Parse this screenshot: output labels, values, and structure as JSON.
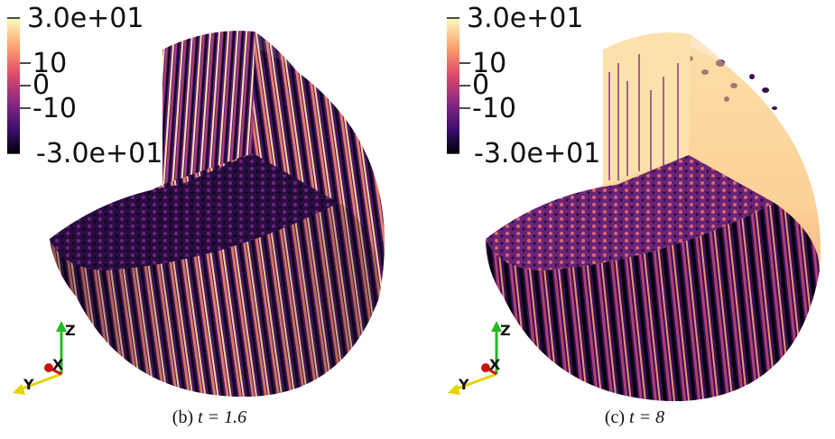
{
  "colorbar": {
    "max_label": "3.0e+01",
    "tick_10": "10",
    "tick_0": "0",
    "tick_neg10": "-10",
    "min_label": "-3.0e+01",
    "colormap": [
      "#fcfdbf",
      "#fe9f6d",
      "#de4968",
      "#8c2981",
      "#3b0f70",
      "#000004"
    ]
  },
  "axes": {
    "z": "Z",
    "y": "Y",
    "x": "X",
    "colors": {
      "z": "#22bb22",
      "y": "#e6d200",
      "x": "#cc1111"
    }
  },
  "panels": [
    {
      "caption_prefix": "(b) ",
      "caption_math": "t = 1.6"
    },
    {
      "caption_prefix": "(c) ",
      "caption_math": "t = 8"
    }
  ]
}
